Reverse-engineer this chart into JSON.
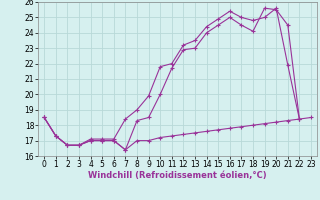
{
  "xlabel": "Windchill (Refroidissement éolien,°C)",
  "background_color": "#d6f0ef",
  "grid_color": "#b8d9d8",
  "line_color": "#993399",
  "xlim": [
    -0.5,
    23.5
  ],
  "ylim": [
    16,
    26
  ],
  "yticks": [
    16,
    17,
    18,
    19,
    20,
    21,
    22,
    23,
    24,
    25,
    26
  ],
  "xticks": [
    0,
    1,
    2,
    3,
    4,
    5,
    6,
    7,
    8,
    9,
    10,
    11,
    12,
    13,
    14,
    15,
    16,
    17,
    18,
    19,
    20,
    21,
    22,
    23
  ],
  "line1_x": [
    0,
    1,
    2,
    3,
    4,
    5,
    6,
    7,
    8,
    9,
    10,
    11,
    12,
    13,
    14,
    15,
    16,
    17,
    18,
    19,
    20,
    21,
    22,
    23
  ],
  "line1_y": [
    18.5,
    17.3,
    16.7,
    16.7,
    17.0,
    17.0,
    17.0,
    16.4,
    17.0,
    17.0,
    17.2,
    17.3,
    17.4,
    17.5,
    17.6,
    17.7,
    17.8,
    17.9,
    18.0,
    18.1,
    18.2,
    18.3,
    18.4,
    18.5
  ],
  "line2_x": [
    0,
    1,
    2,
    3,
    4,
    5,
    6,
    7,
    8,
    9,
    10,
    11,
    12,
    13,
    14,
    15,
    16,
    17,
    18,
    19,
    20,
    21,
    22,
    23
  ],
  "line2_y": [
    18.5,
    17.3,
    16.7,
    16.7,
    17.1,
    17.1,
    17.1,
    18.4,
    19.0,
    19.9,
    21.8,
    22.0,
    23.2,
    23.5,
    24.4,
    24.9,
    25.4,
    25.0,
    24.8,
    25.0,
    25.6,
    21.9,
    18.4,
    null
  ],
  "line3_x": [
    0,
    1,
    2,
    3,
    4,
    5,
    6,
    7,
    8,
    9,
    10,
    11,
    12,
    13,
    14,
    15,
    16,
    17,
    18,
    19,
    20,
    21,
    22,
    23
  ],
  "line3_y": [
    18.5,
    17.3,
    16.7,
    16.7,
    17.0,
    17.0,
    17.0,
    16.4,
    18.3,
    18.5,
    20.0,
    21.7,
    22.9,
    23.0,
    24.0,
    24.5,
    25.0,
    24.5,
    24.1,
    25.6,
    25.5,
    24.5,
    18.4,
    null
  ],
  "tick_fontsize": 5.5,
  "xlabel_fontsize": 6.0
}
